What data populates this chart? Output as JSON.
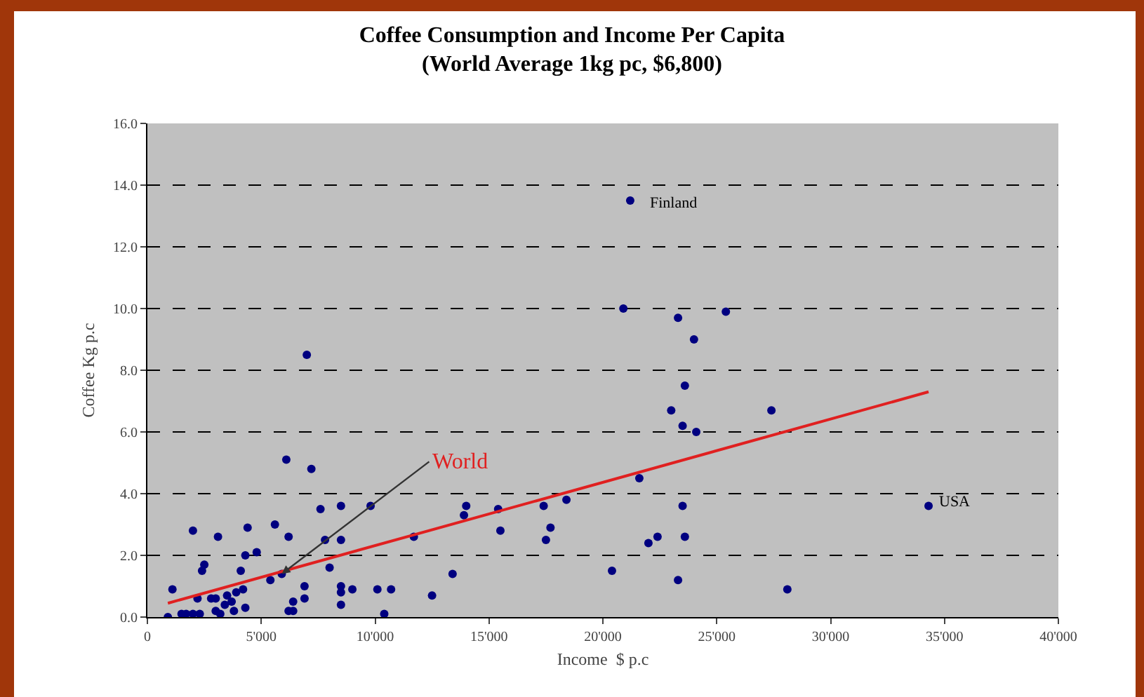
{
  "chart_data": {
    "type": "scatter",
    "title": "Coffee Consumption and Income Per Capita",
    "subtitle": "(World Average 1kg pc, $6,800)",
    "xlabel": "Income  $ p.c",
    "ylabel": "Coffee Kg p.c",
    "series": [
      {
        "color": "#000080",
        "marker": "circle",
        "x": [
          6100,
          7200,
          2000,
          3100,
          4400,
          5600,
          6200,
          7600,
          8500,
          9800,
          7800,
          8500,
          2500,
          2400,
          4300,
          4800,
          4100,
          5400,
          5900,
          8000,
          11700,
          1100,
          2200,
          2800,
          3000,
          3500,
          3900,
          3700,
          3400,
          4200,
          4300,
          3800,
          3000,
          1500,
          1700,
          2000,
          2300,
          900,
          3200,
          6900,
          6400,
          6200,
          6400,
          6900,
          8500,
          8500,
          9000,
          8500,
          10100,
          10700,
          10400,
          7000,
          14000,
          13900,
          15400,
          15500,
          17400,
          18400,
          17700,
          17500,
          13400,
          12500,
          20400,
          21200,
          20900,
          23300,
          25400,
          24000,
          23600,
          23000,
          27400,
          23500,
          24100,
          21600,
          23500,
          22000,
          22400,
          23600,
          23300,
          28100,
          34300
        ],
        "values": [
          5.1,
          4.8,
          2.8,
          2.6,
          2.9,
          3.0,
          2.6,
          3.5,
          3.6,
          3.6,
          2.5,
          2.5,
          1.7,
          1.5,
          2.0,
          2.1,
          1.5,
          1.2,
          1.4,
          1.6,
          2.6,
          0.9,
          0.6,
          0.6,
          0.6,
          0.7,
          0.8,
          0.5,
          0.4,
          0.9,
          0.3,
          0.2,
          0.2,
          0.1,
          0.1,
          0.1,
          0.1,
          0.0,
          0.1,
          1.0,
          0.5,
          0.2,
          0.2,
          0.6,
          1.0,
          0.8,
          0.9,
          0.4,
          0.9,
          0.9,
          0.1,
          8.5,
          3.6,
          3.3,
          3.5,
          2.8,
          3.6,
          3.8,
          2.9,
          2.5,
          1.4,
          0.7,
          1.5,
          13.5,
          10.0,
          9.7,
          9.9,
          9.0,
          7.5,
          6.7,
          6.7,
          6.2,
          6.0,
          4.5,
          3.6,
          2.4,
          2.6,
          2.6,
          1.2,
          0.9,
          3.6
        ]
      },
      {
        "type": "line",
        "color": "#e02020",
        "marker": "none",
        "line_style": "solid",
        "x": [
          900,
          34300
        ],
        "values": [
          0.45,
          7.3
        ]
      }
    ],
    "annotations": [
      {
        "text": "Finland",
        "x": 21200,
        "y": 13.5
      },
      {
        "text": "USA",
        "x": 34300,
        "y": 3.6
      },
      {
        "text": "World",
        "x": 5900,
        "y": 1.4
      }
    ],
    "xlim": [
      0,
      40000
    ],
    "ylim": [
      0,
      16
    ],
    "xticks": [
      0,
      {
        "value": 5000,
        "label": "5'000"
      },
      {
        "value": 10000,
        "label": "10'000"
      },
      {
        "value": 15000,
        "label": "15'000"
      },
      {
        "value": 20000,
        "label": "20'000"
      },
      {
        "value": 25000,
        "label": "25'000"
      },
      {
        "value": 30000,
        "label": "30'000"
      },
      {
        "value": 35000,
        "label": "35'000"
      },
      {
        "value": 40000,
        "label": "40'000"
      }
    ],
    "yticks": [
      {
        "value": 0,
        "label": "0.0"
      },
      {
        "value": 2,
        "label": "2.0"
      },
      {
        "value": 4,
        "label": "4.0"
      },
      {
        "value": 6,
        "label": "6.0"
      },
      {
        "value": 8,
        "label": "8.0"
      },
      {
        "value": 10,
        "label": "10.0"
      },
      {
        "value": 12,
        "label": "12.0"
      },
      {
        "value": 14,
        "label": "14.0"
      },
      {
        "value": 16,
        "label": "16.0"
      }
    ],
    "grid": "y",
    "legend": false
  }
}
